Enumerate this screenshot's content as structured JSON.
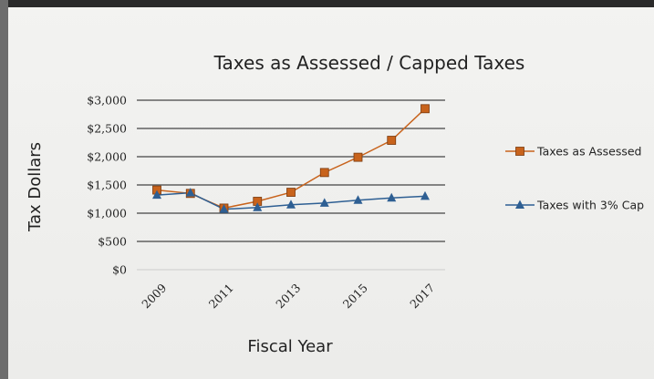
{
  "chart_data": {
    "type": "line",
    "title": "Taxes as Assessed / Capped Taxes",
    "xlabel": "Fiscal Year",
    "ylabel": "Tax Dollars",
    "x": [
      2009,
      2010,
      2011,
      2012,
      2013,
      2014,
      2015,
      2016,
      2017
    ],
    "x_tick_labels": [
      "2009",
      "2011",
      "2013",
      "2015",
      "2017"
    ],
    "y_tick_labels": [
      "$0",
      "$500",
      "$1,000",
      "$1,500",
      "$2,000",
      "$2,500",
      "$3,000"
    ],
    "ylim": [
      0,
      3000
    ],
    "grid": true,
    "legend_position": "right",
    "series": [
      {
        "name": "Taxes as Assessed",
        "marker": "square",
        "color": "#c8631c",
        "values": [
          1410,
          1350,
          1090,
          1210,
          1370,
          1720,
          1990,
          2290,
          2850
        ]
      },
      {
        "name": "Taxes with 3% Cap",
        "marker": "triangle",
        "color": "#2e5f93",
        "values": [
          1320,
          1360,
          1070,
          1100,
          1150,
          1180,
          1230,
          1270,
          1300
        ]
      }
    ]
  }
}
